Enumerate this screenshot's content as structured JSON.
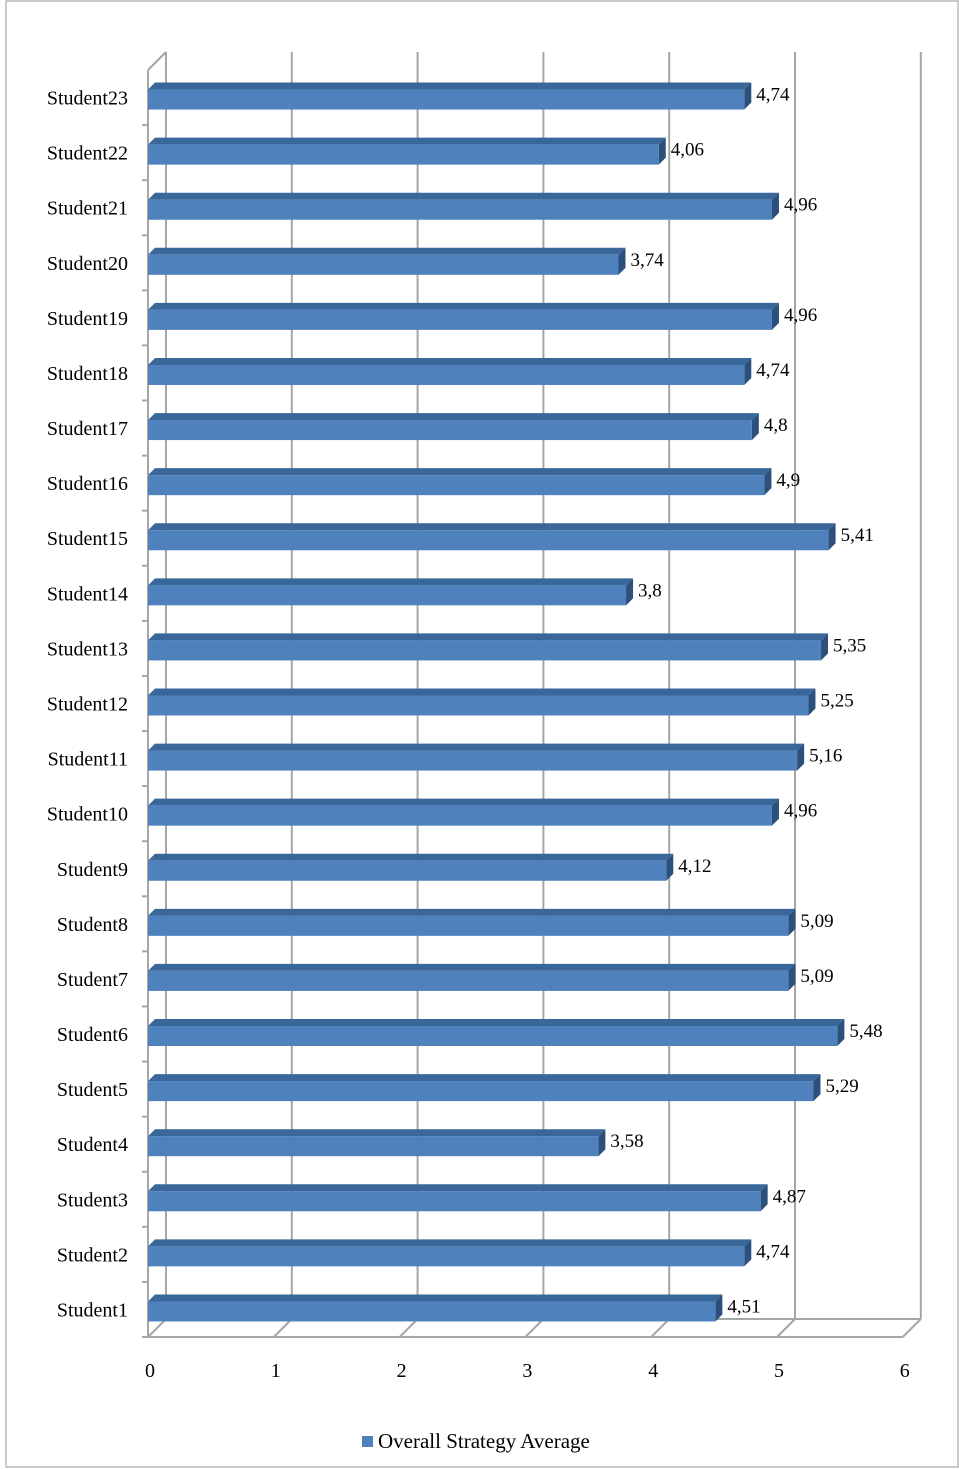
{
  "chart_data": {
    "type": "bar",
    "orientation": "horizontal",
    "categories": [
      "Student1",
      "Student2",
      "Student3",
      "Student4",
      "Student5",
      "Student6",
      "Student7",
      "Student8",
      "Student9",
      "Student10",
      "Student11",
      "Student12",
      "Student13",
      "Student14",
      "Student15",
      "Student16",
      "Student17",
      "Student18",
      "Student19",
      "Student20",
      "Student21",
      "Student22",
      "Student23"
    ],
    "series": [
      {
        "name": "Overall Strategy Average",
        "color": "#4F81BD",
        "values": [
          4.51,
          4.74,
          4.87,
          3.58,
          5.29,
          5.48,
          5.09,
          5.09,
          4.12,
          4.96,
          5.16,
          5.25,
          5.35,
          3.8,
          5.41,
          4.9,
          4.8,
          4.74,
          4.96,
          3.74,
          4.96,
          4.06,
          4.74
        ],
        "labels": [
          "4,51",
          "4,74",
          "4,87",
          "3,58",
          "5,29",
          "5,48",
          "5,09",
          "5,09",
          "4,12",
          "4,96",
          "5,16",
          "5,25",
          "5,35",
          "3,8",
          "5,41",
          "4,9",
          "4,8",
          "4,74",
          "4,96",
          "3,74",
          "4,96",
          "4,06",
          "4,74"
        ]
      }
    ],
    "xlim": [
      0,
      6
    ],
    "xticks": [
      "0",
      "1",
      "2",
      "3",
      "4",
      "5",
      "6"
    ],
    "grid": true,
    "legend": "bottom",
    "style": "3d"
  }
}
